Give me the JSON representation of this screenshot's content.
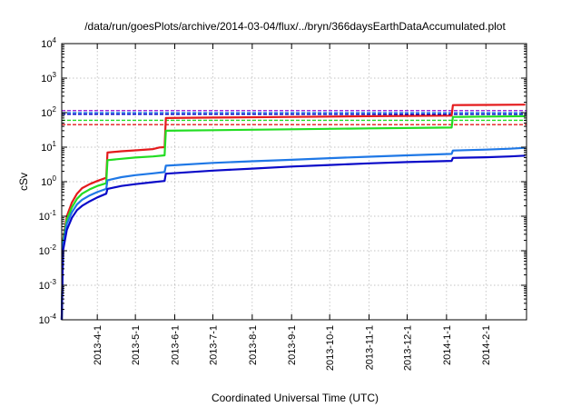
{
  "chart_data": {
    "type": "line",
    "title": "/data/run/goesPlots/archive/2014-03-04/flux/../bryn/366daysEarthDataAccumulated.plot",
    "xlabel": "Coordinated Universal Time (UTC)",
    "ylabel": "cSv",
    "x_scale": "time",
    "y_scale": "log",
    "xlim": [
      "2013-03-04",
      "2014-03-05"
    ],
    "ylim": [
      0.0001,
      10000
    ],
    "grid": true,
    "legend": "none",
    "x_ticks": [
      "2013-4-1",
      "2013-5-1",
      "2013-6-1",
      "2013-7-1",
      "2013-8-1",
      "2013-9-1",
      "2013-10-1",
      "2013-11-1",
      "2013-12-1",
      "2014-1-1",
      "2014-2-1"
    ],
    "y_ticks": [
      {
        "value": 0.0001,
        "mantissa": "10",
        "exponent": "-4"
      },
      {
        "value": 0.001,
        "mantissa": "10",
        "exponent": "-3"
      },
      {
        "value": 0.01,
        "mantissa": "10",
        "exponent": "-2"
      },
      {
        "value": 0.1,
        "mantissa": "10",
        "exponent": "-1"
      },
      {
        "value": 1,
        "mantissa": "10",
        "exponent": "0"
      },
      {
        "value": 10,
        "mantissa": "10",
        "exponent": "1"
      },
      {
        "value": 100,
        "mantissa": "10",
        "exponent": "2"
      },
      {
        "value": 1000,
        "mantissa": "10",
        "exponent": "3"
      },
      {
        "value": 10000,
        "mantissa": "10",
        "exponent": "4"
      }
    ],
    "series": [
      {
        "color": "#e41a1c",
        "values": [
          [
            "2013-03-04",
            0.0001
          ],
          [
            "2013-03-05",
            0.02
          ],
          [
            "2013-03-08",
            0.1
          ],
          [
            "2013-03-12",
            0.25
          ],
          [
            "2013-03-16",
            0.45
          ],
          [
            "2013-03-20",
            0.65
          ],
          [
            "2013-03-26",
            0.85
          ],
          [
            "2013-04-01",
            1.05
          ],
          [
            "2013-04-08",
            1.3
          ],
          [
            "2013-04-09",
            7
          ],
          [
            "2013-04-20",
            7.6
          ],
          [
            "2013-05-01",
            8.1
          ],
          [
            "2013-05-15",
            8.8
          ],
          [
            "2013-05-20",
            9.8
          ],
          [
            "2013-05-24",
            10
          ],
          [
            "2013-05-25",
            70
          ],
          [
            "2013-07-01",
            72
          ],
          [
            "2013-09-01",
            75
          ],
          [
            "2013-11-01",
            79
          ],
          [
            "2014-01-05",
            82
          ],
          [
            "2014-01-06",
            165
          ],
          [
            "2014-02-01",
            167
          ],
          [
            "2014-03-04",
            170
          ]
        ]
      },
      {
        "color": "#22dd22",
        "values": [
          [
            "2013-03-04",
            0.0001
          ],
          [
            "2013-03-05",
            0.018
          ],
          [
            "2013-03-08",
            0.08
          ],
          [
            "2013-03-12",
            0.18
          ],
          [
            "2013-03-16",
            0.32
          ],
          [
            "2013-03-20",
            0.45
          ],
          [
            "2013-03-26",
            0.6
          ],
          [
            "2013-04-01",
            0.75
          ],
          [
            "2013-04-08",
            0.9
          ],
          [
            "2013-04-09",
            4.2
          ],
          [
            "2013-04-20",
            4.6
          ],
          [
            "2013-05-01",
            5
          ],
          [
            "2013-05-15",
            5.4
          ],
          [
            "2013-05-24",
            5.8
          ],
          [
            "2013-05-25",
            30
          ],
          [
            "2013-07-01",
            31
          ],
          [
            "2013-09-01",
            33
          ],
          [
            "2013-11-01",
            35
          ],
          [
            "2014-01-05",
            37
          ],
          [
            "2014-01-06",
            75
          ],
          [
            "2014-02-01",
            77
          ],
          [
            "2014-03-04",
            79
          ]
        ]
      },
      {
        "color": "#1f78e6",
        "values": [
          [
            "2013-03-04",
            0.0001
          ],
          [
            "2013-03-05",
            0.015
          ],
          [
            "2013-03-08",
            0.06
          ],
          [
            "2013-03-12",
            0.13
          ],
          [
            "2013-03-16",
            0.22
          ],
          [
            "2013-03-20",
            0.3
          ],
          [
            "2013-03-26",
            0.4
          ],
          [
            "2013-04-01",
            0.5
          ],
          [
            "2013-04-08",
            0.62
          ],
          [
            "2013-04-09",
            1.1
          ],
          [
            "2013-04-20",
            1.35
          ],
          [
            "2013-05-01",
            1.55
          ],
          [
            "2013-05-15",
            1.75
          ],
          [
            "2013-05-24",
            1.9
          ],
          [
            "2013-05-25",
            2.9
          ],
          [
            "2013-07-01",
            3.5
          ],
          [
            "2013-08-01",
            3.9
          ],
          [
            "2013-09-01",
            4.3
          ],
          [
            "2013-10-01",
            4.8
          ],
          [
            "2013-11-01",
            5.3
          ],
          [
            "2013-12-01",
            5.8
          ],
          [
            "2014-01-05",
            6.4
          ],
          [
            "2014-01-06",
            8
          ],
          [
            "2014-02-01",
            8.5
          ],
          [
            "2014-02-20",
            9
          ],
          [
            "2014-03-04",
            9.6
          ]
        ]
      },
      {
        "color": "#0a0ac8",
        "values": [
          [
            "2013-03-04",
            0.0001
          ],
          [
            "2013-03-05",
            0.01
          ],
          [
            "2013-03-08",
            0.04
          ],
          [
            "2013-03-12",
            0.09
          ],
          [
            "2013-03-16",
            0.15
          ],
          [
            "2013-03-20",
            0.2
          ],
          [
            "2013-03-26",
            0.27
          ],
          [
            "2013-04-01",
            0.35
          ],
          [
            "2013-04-08",
            0.45
          ],
          [
            "2013-04-09",
            0.62
          ],
          [
            "2013-04-20",
            0.75
          ],
          [
            "2013-05-01",
            0.85
          ],
          [
            "2013-05-15",
            0.97
          ],
          [
            "2013-05-24",
            1.05
          ],
          [
            "2013-05-25",
            1.7
          ],
          [
            "2013-07-01",
            2.1
          ],
          [
            "2013-08-01",
            2.4
          ],
          [
            "2013-09-01",
            2.75
          ],
          [
            "2013-10-01",
            3.05
          ],
          [
            "2013-11-01",
            3.4
          ],
          [
            "2013-12-01",
            3.7
          ],
          [
            "2014-01-05",
            4.0
          ],
          [
            "2014-01-06",
            4.9
          ],
          [
            "2014-02-01",
            5.1
          ],
          [
            "2014-02-20",
            5.4
          ],
          [
            "2014-03-04",
            5.7
          ]
        ]
      }
    ],
    "reference_lines": [
      {
        "color": "#9c27d6",
        "value": 115
      },
      {
        "color": "#1f78e6",
        "value": 100
      },
      {
        "color": "#0a0ac8",
        "value": 90
      },
      {
        "color": "#22dd22",
        "value": 60
      },
      {
        "color": "#e41a1c",
        "value": 45
      }
    ]
  }
}
